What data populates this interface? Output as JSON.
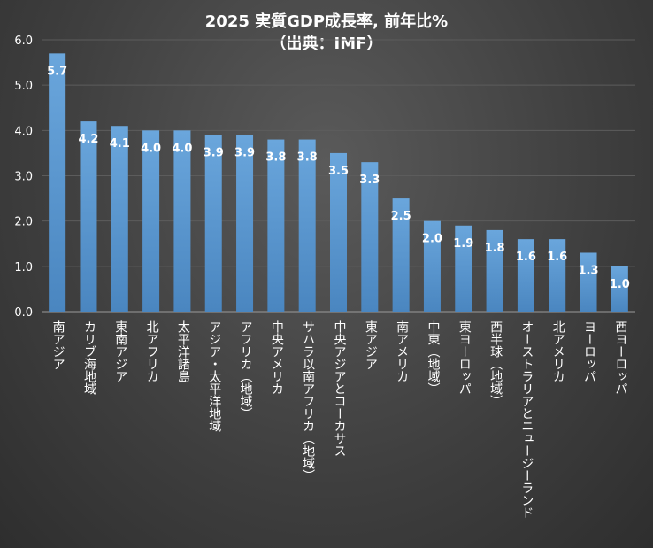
{
  "chart_data": {
    "type": "bar",
    "title": "2025 実質GDP成長率, 前年比%",
    "subtitle": "（出典：IMF）",
    "xlabel": "",
    "ylabel": "",
    "ylim": [
      0,
      6
    ],
    "yticks": [
      "0.0",
      "1.0",
      "2.0",
      "3.0",
      "4.0",
      "5.0",
      "6.0"
    ],
    "grid": true,
    "bar_color": "#5b9bd5",
    "categories": [
      "南アジア",
      "カリブ海地域",
      "東南アジア",
      "北アフリカ",
      "太平洋諸島",
      "アジア・太平洋地域",
      "アフリカ（地域）",
      "中央アメリカ",
      "サハラ以南アフリカ（地域）",
      "中央アジアとコーカサス",
      "東アジア",
      "南アメリカ",
      "中東（地域）",
      "東ヨーロッパ",
      "西半球（地域）",
      "オーストラリアとニュージーランド",
      "北アメリカ",
      "ヨーロッパ",
      "西ヨーロッパ"
    ],
    "values": [
      5.7,
      4.2,
      4.1,
      4.0,
      4.0,
      3.9,
      3.9,
      3.8,
      3.8,
      3.5,
      3.3,
      2.5,
      2.0,
      1.9,
      1.8,
      1.6,
      1.6,
      1.3,
      1.0
    ],
    "labels": [
      "5.7",
      "4.2",
      "4.1",
      "4.0",
      "4.0",
      "3.9",
      "3.9",
      "3.8",
      "3.8",
      "3.5",
      "3.3",
      "2.5",
      "2.0",
      "1.9",
      "1.8",
      "1.6",
      "1.6",
      "1.3",
      "1.0"
    ]
  }
}
